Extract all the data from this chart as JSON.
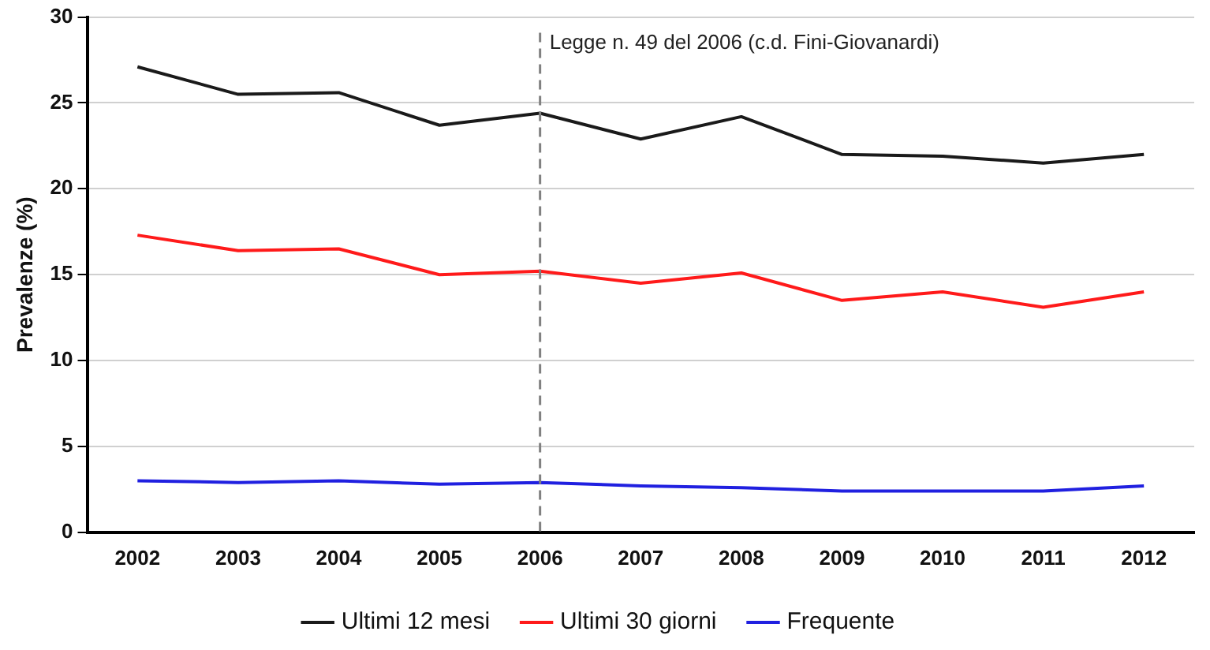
{
  "chart_data": {
    "type": "line",
    "ylabel": "Prevalenze (%)",
    "categories": [
      "2002",
      "2003",
      "2004",
      "2005",
      "2006",
      "2007",
      "2008",
      "2009",
      "2010",
      "2011",
      "2012"
    ],
    "series": [
      {
        "name": "Ultimi 12 mesi",
        "color": "#1a1a1a",
        "values": [
          27.1,
          25.5,
          25.6,
          23.7,
          24.4,
          22.9,
          24.2,
          22.0,
          21.9,
          21.5,
          22.0
        ]
      },
      {
        "name": "Ultimi 30 giorni",
        "color": "#ff1a1a",
        "values": [
          17.3,
          16.4,
          16.5,
          15.0,
          15.2,
          14.5,
          15.1,
          13.5,
          14.0,
          13.1,
          14.0
        ]
      },
      {
        "name": "Frequente",
        "color": "#2020e0",
        "values": [
          3.0,
          2.9,
          3.0,
          2.8,
          2.9,
          2.7,
          2.6,
          2.4,
          2.4,
          2.4,
          2.7
        ]
      }
    ],
    "ylim": [
      0,
      30
    ],
    "yticks": [
      0,
      5,
      10,
      15,
      20,
      25,
      30
    ],
    "grid": "y",
    "legend": "bottom",
    "marker": "none",
    "line_style": "solid",
    "ref_lines": [
      {
        "axis": "x",
        "value": "2006",
        "label": "Legge n. 49 del 2006 (c.d. Fini-Giovanardi)",
        "color": "#808080",
        "line_style": "dashed"
      }
    ]
  }
}
